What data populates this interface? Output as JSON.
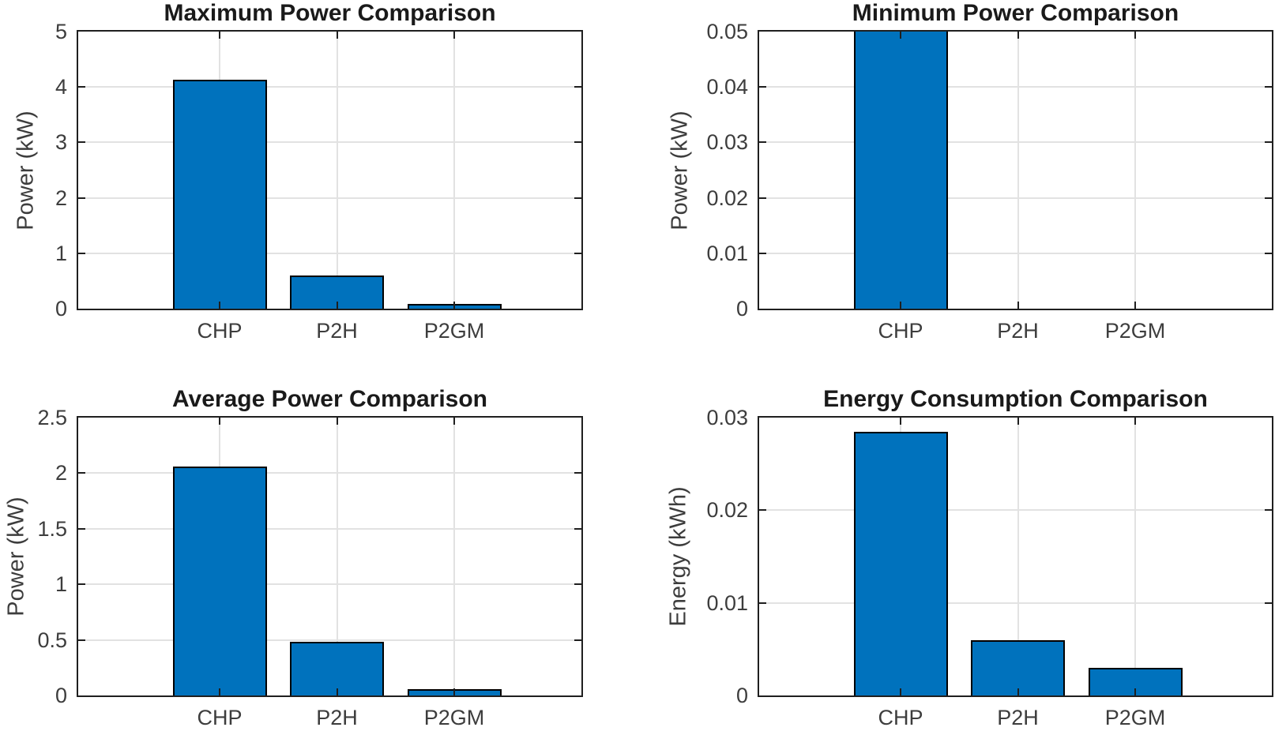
{
  "figure": {
    "background": "#FFFFFF",
    "bar_fill_color": "#0072BD",
    "bar_edge_color": "#000000",
    "grid_color": "#E2E2E2",
    "axis_color": "#1F1F1F",
    "tick_text_color": "#3D3D3D",
    "title_text_color": "#1A1A1A"
  },
  "chart_data": [
    {
      "type": "bar",
      "title": "Maximum Power Comparison",
      "xlabel": "",
      "ylabel": "Power (kW)",
      "categories": [
        "CHP",
        "P2H",
        "P2GM"
      ],
      "values": [
        4.13,
        0.6,
        0.08
      ],
      "ylim": [
        0,
        5
      ],
      "yticks": [
        0,
        1,
        2,
        3,
        4,
        5
      ],
      "ytick_labels": [
        "0",
        "1",
        "2",
        "3",
        "4",
        "5"
      ],
      "grid": true,
      "legend_position": "none"
    },
    {
      "type": "bar",
      "title": "Minimum Power Comparison",
      "xlabel": "",
      "ylabel": "Power (kW)",
      "categories": [
        "CHP",
        "P2H",
        "P2GM"
      ],
      "values": [
        0.05,
        0,
        0
      ],
      "clipped": [
        true,
        false,
        false
      ],
      "ylim": [
        0,
        0.05
      ],
      "yticks": [
        0,
        0.01,
        0.02,
        0.03,
        0.04,
        0.05
      ],
      "ytick_labels": [
        "0",
        "0.01",
        "0.02",
        "0.03",
        "0.04",
        "0.05"
      ],
      "grid": true,
      "legend_position": "none"
    },
    {
      "type": "bar",
      "title": "Average Power Comparison",
      "xlabel": "",
      "ylabel": "Power (kW)",
      "categories": [
        "CHP",
        "P2H",
        "P2GM"
      ],
      "values": [
        2.06,
        0.48,
        0.06
      ],
      "ylim": [
        0,
        2.5
      ],
      "yticks": [
        0,
        0.5,
        1,
        1.5,
        2,
        2.5
      ],
      "ytick_labels": [
        "0",
        "0.5",
        "1",
        "1.5",
        "2",
        "2.5"
      ],
      "grid": true,
      "legend_position": "none"
    },
    {
      "type": "bar",
      "title": "Energy Consumption Comparison",
      "xlabel": "",
      "ylabel": "Energy (kWh)",
      "categories": [
        "CHP",
        "P2H",
        "P2GM"
      ],
      "values": [
        0.0285,
        0.006,
        0.003
      ],
      "ylim": [
        0,
        0.03
      ],
      "yticks": [
        0,
        0.01,
        0.02,
        0.03
      ],
      "ytick_labels": [
        "0",
        "0.01",
        "0.02",
        "0.03"
      ],
      "grid": true,
      "legend_position": "none"
    }
  ]
}
